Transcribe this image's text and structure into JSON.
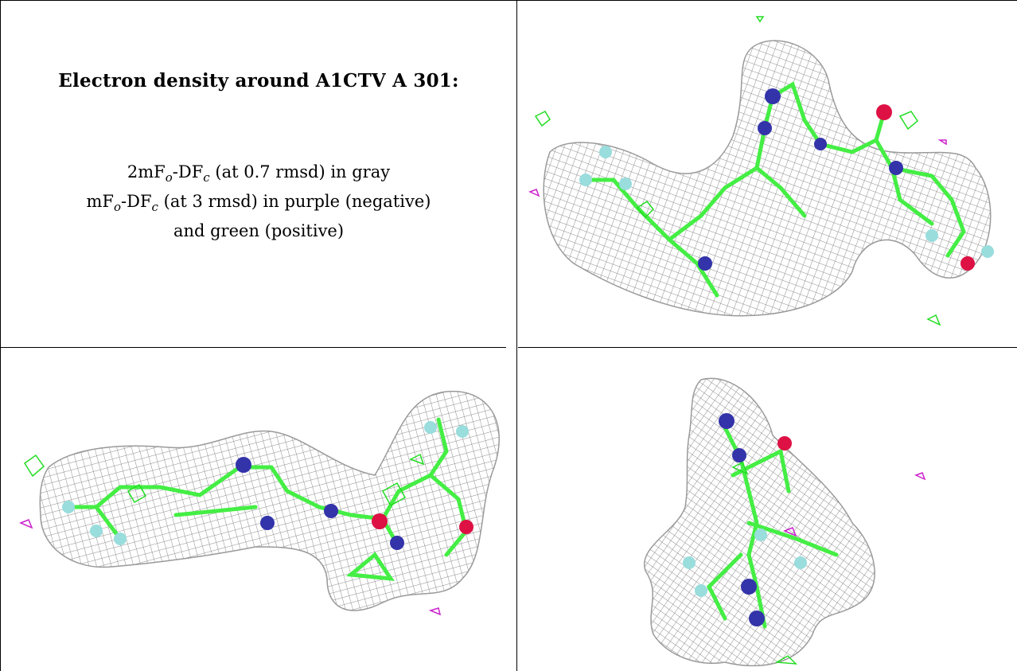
{
  "caption": {
    "title": "Electron density around A1CTV A 301:",
    "line1_prefix": "2mF",
    "line1_sub1": "o",
    "line1_mid": "-DF",
    "line1_sub2": "c",
    "line1_suffix": " (at 0.7 rmsd) in gray",
    "line2_prefix": "mF",
    "line2_sub1": "o",
    "line2_mid": "-DF",
    "line2_sub2": "c",
    "line2_suffix": " (at 3 rmsd) in purple (negative)",
    "line3": "and green (positive)"
  },
  "colors": {
    "mesh_2fofc": "#8c8c8c",
    "positive_density": "#22dd22",
    "negative_density": "#cc22cc",
    "carbon": "#44ee44",
    "nitrogen": "#3333aa",
    "oxygen": "#dd1144",
    "fluorine": "#99dddd",
    "border": "#000000"
  },
  "panels": [
    {
      "view": "top-right",
      "description": "ligand stick model within gray density mesh, front view"
    },
    {
      "view": "bottom-left",
      "description": "ligand stick model within gray density mesh, side view"
    },
    {
      "view": "bottom-right",
      "description": "ligand stick model within gray density mesh, end-on view"
    }
  ]
}
